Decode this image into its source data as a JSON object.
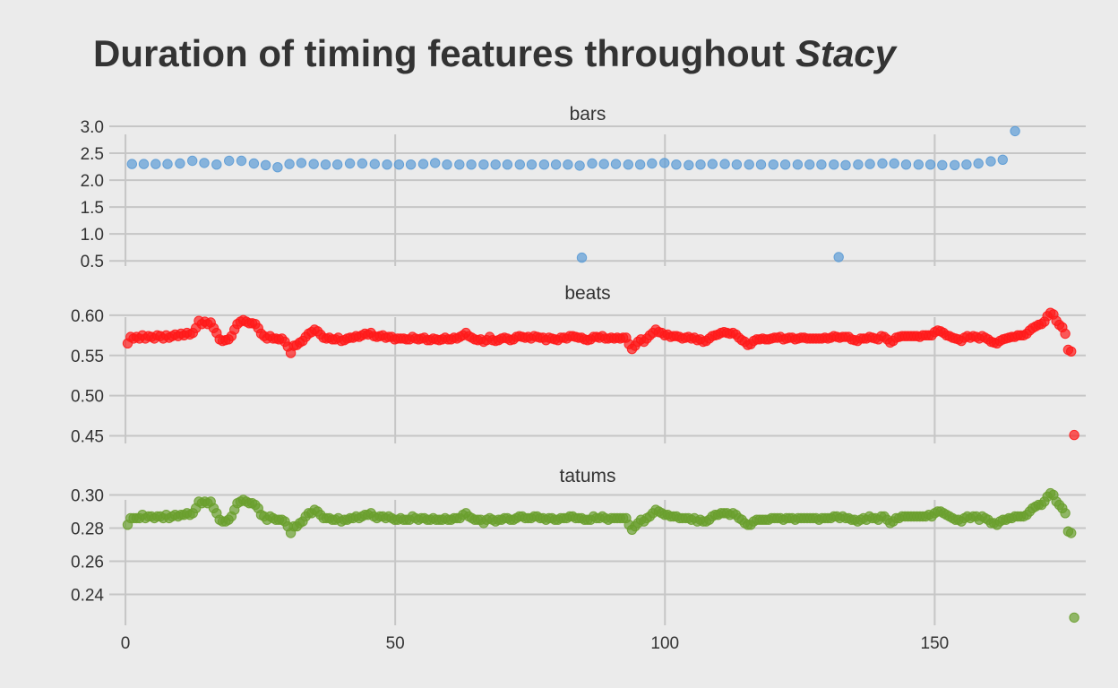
{
  "chart_data": {
    "type": "scatter",
    "title_main": "Duration of timing features throughout ",
    "title_emph": "Stacy",
    "xlabel": "",
    "ylabel": "",
    "xlim": [
      -3,
      178
    ],
    "x_ticks": [
      0,
      50,
      100,
      150
    ],
    "x_tick_labels": [
      "0",
      "50",
      "100",
      "150"
    ],
    "grid": true,
    "panels": [
      {
        "name": "bars",
        "color": "#5b9bd5",
        "ylim": [
          0.47,
          3.05
        ],
        "y_ticks": [
          0.5,
          1.0,
          1.5,
          2.0,
          2.5,
          3.0
        ],
        "y_tick_labels": [
          "0.5",
          "1.0",
          "1.5",
          "2.0",
          "2.5",
          "3.0"
        ],
        "x": [
          1.2,
          3.4,
          5.6,
          7.8,
          10.1,
          12.4,
          14.6,
          16.9,
          19.2,
          21.5,
          23.8,
          26.0,
          28.2,
          30.4,
          32.6,
          34.9,
          37.1,
          39.3,
          41.6,
          43.9,
          46.2,
          48.5,
          50.7,
          52.9,
          55.2,
          57.4,
          59.6,
          61.9,
          64.1,
          66.4,
          68.6,
          70.8,
          73.1,
          75.3,
          77.6,
          79.8,
          82.0,
          84.2,
          84.6,
          86.5,
          88.7,
          90.9,
          93.2,
          95.4,
          97.6,
          99.9,
          102.1,
          104.4,
          106.6,
          108.8,
          111.1,
          113.3,
          115.6,
          117.8,
          120.1,
          122.3,
          124.6,
          126.8,
          129.0,
          131.3,
          132.2,
          133.5,
          135.8,
          138.0,
          140.3,
          142.5,
          144.7,
          147.0,
          149.2,
          151.4,
          153.7,
          155.9,
          158.1,
          160.4,
          162.6,
          164.9
        ],
        "y": [
          2.3,
          2.3,
          2.3,
          2.3,
          2.31,
          2.36,
          2.32,
          2.29,
          2.36,
          2.36,
          2.31,
          2.28,
          2.24,
          2.3,
          2.32,
          2.3,
          2.29,
          2.29,
          2.31,
          2.31,
          2.3,
          2.29,
          2.29,
          2.29,
          2.3,
          2.32,
          2.29,
          2.29,
          2.29,
          2.29,
          2.29,
          2.29,
          2.29,
          2.29,
          2.29,
          2.29,
          2.29,
          2.27,
          0.56,
          2.31,
          2.3,
          2.3,
          2.29,
          2.29,
          2.31,
          2.32,
          2.29,
          2.28,
          2.29,
          2.3,
          2.3,
          2.29,
          2.29,
          2.29,
          2.29,
          2.29,
          2.29,
          2.29,
          2.29,
          2.29,
          0.57,
          2.28,
          2.29,
          2.3,
          2.31,
          2.31,
          2.29,
          2.29,
          2.29,
          2.28,
          2.28,
          2.29,
          2.31,
          2.35,
          2.38,
          2.91
        ]
      },
      {
        "name": "beats",
        "color": "#ff1a1a",
        "ylim": [
          0.445,
          0.611
        ],
        "y_ticks": [
          0.45,
          0.5,
          0.55,
          0.6
        ],
        "y_tick_labels": [
          "0.45",
          "0.50",
          "0.55",
          "0.60"
        ],
        "x_start": 0.4,
        "x_step": 0.55,
        "y": [
          0.565,
          0.573,
          0.571,
          0.573,
          0.571,
          0.575,
          0.571,
          0.574,
          0.573,
          0.571,
          0.575,
          0.574,
          0.571,
          0.575,
          0.572,
          0.574,
          0.576,
          0.574,
          0.577,
          0.575,
          0.578,
          0.576,
          0.578,
          0.584,
          0.593,
          0.589,
          0.592,
          0.589,
          0.591,
          0.584,
          0.578,
          0.57,
          0.568,
          0.569,
          0.57,
          0.574,
          0.582,
          0.589,
          0.592,
          0.594,
          0.592,
          0.59,
          0.59,
          0.589,
          0.584,
          0.577,
          0.574,
          0.571,
          0.574,
          0.571,
          0.571,
          0.57,
          0.571,
          0.567,
          0.561,
          0.553,
          0.562,
          0.563,
          0.566,
          0.568,
          0.573,
          0.577,
          0.579,
          0.582,
          0.58,
          0.576,
          0.572,
          0.571,
          0.572,
          0.57,
          0.57,
          0.572,
          0.568,
          0.569,
          0.571,
          0.572,
          0.572,
          0.574,
          0.573,
          0.575,
          0.577,
          0.576,
          0.578,
          0.574,
          0.573,
          0.574,
          0.575,
          0.572,
          0.573,
          0.573,
          0.57,
          0.571,
          0.571,
          0.571,
          0.57,
          0.57,
          0.573,
          0.571,
          0.57,
          0.571,
          0.572,
          0.569,
          0.569,
          0.571,
          0.57,
          0.569,
          0.57,
          0.572,
          0.57,
          0.57,
          0.572,
          0.571,
          0.573,
          0.575,
          0.578,
          0.574,
          0.572,
          0.57,
          0.569,
          0.57,
          0.567,
          0.569,
          0.573,
          0.569,
          0.568,
          0.569,
          0.571,
          0.572,
          0.571,
          0.569,
          0.57,
          0.573,
          0.574,
          0.573,
          0.572,
          0.573,
          0.571,
          0.574,
          0.573,
          0.572,
          0.572,
          0.569,
          0.572,
          0.571,
          0.57,
          0.569,
          0.572,
          0.572,
          0.571,
          0.574,
          0.574,
          0.573,
          0.572,
          0.572,
          0.57,
          0.569,
          0.57,
          0.573,
          0.573,
          0.572,
          0.574,
          0.571,
          0.571,
          0.572,
          0.571,
          0.572,
          0.571,
          0.572,
          0.572,
          0.564,
          0.558,
          0.562,
          0.567,
          0.57,
          0.567,
          0.571,
          0.575,
          0.578,
          0.582,
          0.579,
          0.578,
          0.575,
          0.576,
          0.573,
          0.574,
          0.574,
          0.573,
          0.571,
          0.572,
          0.573,
          0.571,
          0.572,
          0.569,
          0.57,
          0.567,
          0.568,
          0.571,
          0.574,
          0.575,
          0.576,
          0.578,
          0.579,
          0.578,
          0.577,
          0.578,
          0.576,
          0.572,
          0.569,
          0.567,
          0.563,
          0.564,
          0.568,
          0.57,
          0.57,
          0.571,
          0.57,
          0.57,
          0.571,
          0.572,
          0.572,
          0.573,
          0.57,
          0.571,
          0.572,
          0.572,
          0.57,
          0.571,
          0.572,
          0.572,
          0.571,
          0.571,
          0.571,
          0.571,
          0.571,
          0.571,
          0.572,
          0.571,
          0.572,
          0.574,
          0.573,
          0.572,
          0.573,
          0.573,
          0.573,
          0.57,
          0.569,
          0.568,
          0.571,
          0.571,
          0.571,
          0.573,
          0.572,
          0.571,
          0.57,
          0.574,
          0.573,
          0.57,
          0.566,
          0.568,
          0.572,
          0.573,
          0.574,
          0.574,
          0.574,
          0.574,
          0.574,
          0.574,
          0.573,
          0.575,
          0.575,
          0.575,
          0.575,
          0.579,
          0.581,
          0.58,
          0.578,
          0.575,
          0.574,
          0.572,
          0.571,
          0.57,
          0.568,
          0.572,
          0.574,
          0.572,
          0.574,
          0.573,
          0.571,
          0.574,
          0.572,
          0.57,
          0.567,
          0.566,
          0.565,
          0.568,
          0.57,
          0.571,
          0.572,
          0.573,
          0.573,
          0.575,
          0.575,
          0.575,
          0.577,
          0.581,
          0.584,
          0.586,
          0.588,
          0.589,
          0.592,
          0.599,
          0.603,
          0.601,
          0.593,
          0.588,
          0.585,
          0.577,
          0.557,
          0.555,
          0.451
        ]
      },
      {
        "name": "tatums",
        "color": "#6a9f2e",
        "ylim": [
          0.2235,
          0.3035
        ],
        "y_ticks": [
          0.24,
          0.26,
          0.28,
          0.3
        ],
        "y_tick_labels": [
          "0.24",
          "0.26",
          "0.28",
          "0.30"
        ],
        "x_start": 0.4,
        "x_step": 0.55,
        "y": [
          0.282,
          0.286,
          0.286,
          0.286,
          0.286,
          0.288,
          0.286,
          0.287,
          0.287,
          0.286,
          0.287,
          0.287,
          0.286,
          0.288,
          0.286,
          0.287,
          0.288,
          0.287,
          0.288,
          0.288,
          0.289,
          0.288,
          0.289,
          0.292,
          0.296,
          0.295,
          0.296,
          0.295,
          0.296,
          0.292,
          0.289,
          0.285,
          0.284,
          0.284,
          0.285,
          0.287,
          0.291,
          0.295,
          0.296,
          0.297,
          0.296,
          0.295,
          0.295,
          0.294,
          0.292,
          0.288,
          0.287,
          0.285,
          0.287,
          0.286,
          0.285,
          0.285,
          0.285,
          0.284,
          0.281,
          0.277,
          0.281,
          0.281,
          0.283,
          0.284,
          0.287,
          0.289,
          0.289,
          0.291,
          0.29,
          0.288,
          0.286,
          0.286,
          0.286,
          0.285,
          0.285,
          0.286,
          0.284,
          0.285,
          0.285,
          0.286,
          0.286,
          0.287,
          0.286,
          0.287,
          0.288,
          0.288,
          0.289,
          0.287,
          0.286,
          0.287,
          0.287,
          0.286,
          0.287,
          0.286,
          0.285,
          0.285,
          0.286,
          0.285,
          0.285,
          0.285,
          0.287,
          0.286,
          0.285,
          0.286,
          0.286,
          0.285,
          0.285,
          0.286,
          0.285,
          0.285,
          0.285,
          0.286,
          0.285,
          0.285,
          0.286,
          0.286,
          0.286,
          0.288,
          0.289,
          0.287,
          0.286,
          0.285,
          0.285,
          0.285,
          0.283,
          0.285,
          0.286,
          0.285,
          0.284,
          0.285,
          0.285,
          0.286,
          0.286,
          0.285,
          0.285,
          0.286,
          0.287,
          0.287,
          0.286,
          0.286,
          0.286,
          0.287,
          0.287,
          0.286,
          0.286,
          0.285,
          0.286,
          0.286,
          0.285,
          0.285,
          0.286,
          0.286,
          0.286,
          0.287,
          0.287,
          0.286,
          0.286,
          0.286,
          0.285,
          0.285,
          0.285,
          0.287,
          0.286,
          0.286,
          0.287,
          0.286,
          0.285,
          0.286,
          0.286,
          0.286,
          0.286,
          0.286,
          0.286,
          0.282,
          0.279,
          0.281,
          0.283,
          0.285,
          0.284,
          0.286,
          0.287,
          0.289,
          0.291,
          0.29,
          0.289,
          0.288,
          0.288,
          0.287,
          0.287,
          0.287,
          0.286,
          0.286,
          0.286,
          0.286,
          0.285,
          0.286,
          0.284,
          0.285,
          0.284,
          0.284,
          0.285,
          0.287,
          0.288,
          0.288,
          0.289,
          0.289,
          0.289,
          0.288,
          0.289,
          0.288,
          0.286,
          0.285,
          0.283,
          0.282,
          0.282,
          0.284,
          0.285,
          0.285,
          0.285,
          0.285,
          0.285,
          0.286,
          0.286,
          0.286,
          0.286,
          0.285,
          0.286,
          0.286,
          0.286,
          0.285,
          0.286,
          0.286,
          0.286,
          0.286,
          0.286,
          0.286,
          0.286,
          0.285,
          0.286,
          0.286,
          0.286,
          0.286,
          0.287,
          0.287,
          0.286,
          0.287,
          0.286,
          0.286,
          0.285,
          0.285,
          0.284,
          0.285,
          0.286,
          0.285,
          0.287,
          0.286,
          0.286,
          0.285,
          0.287,
          0.287,
          0.285,
          0.283,
          0.284,
          0.286,
          0.286,
          0.287,
          0.287,
          0.287,
          0.287,
          0.287,
          0.287,
          0.287,
          0.287,
          0.287,
          0.288,
          0.287,
          0.289,
          0.29,
          0.29,
          0.289,
          0.288,
          0.287,
          0.286,
          0.285,
          0.285,
          0.284,
          0.286,
          0.287,
          0.286,
          0.287,
          0.287,
          0.285,
          0.287,
          0.286,
          0.285,
          0.283,
          0.283,
          0.282,
          0.284,
          0.285,
          0.285,
          0.286,
          0.286,
          0.287,
          0.287,
          0.287,
          0.287,
          0.288,
          0.29,
          0.292,
          0.293,
          0.294,
          0.294,
          0.296,
          0.299,
          0.301,
          0.3,
          0.296,
          0.294,
          0.292,
          0.289,
          0.278,
          0.277,
          0.226
        ]
      }
    ]
  }
}
